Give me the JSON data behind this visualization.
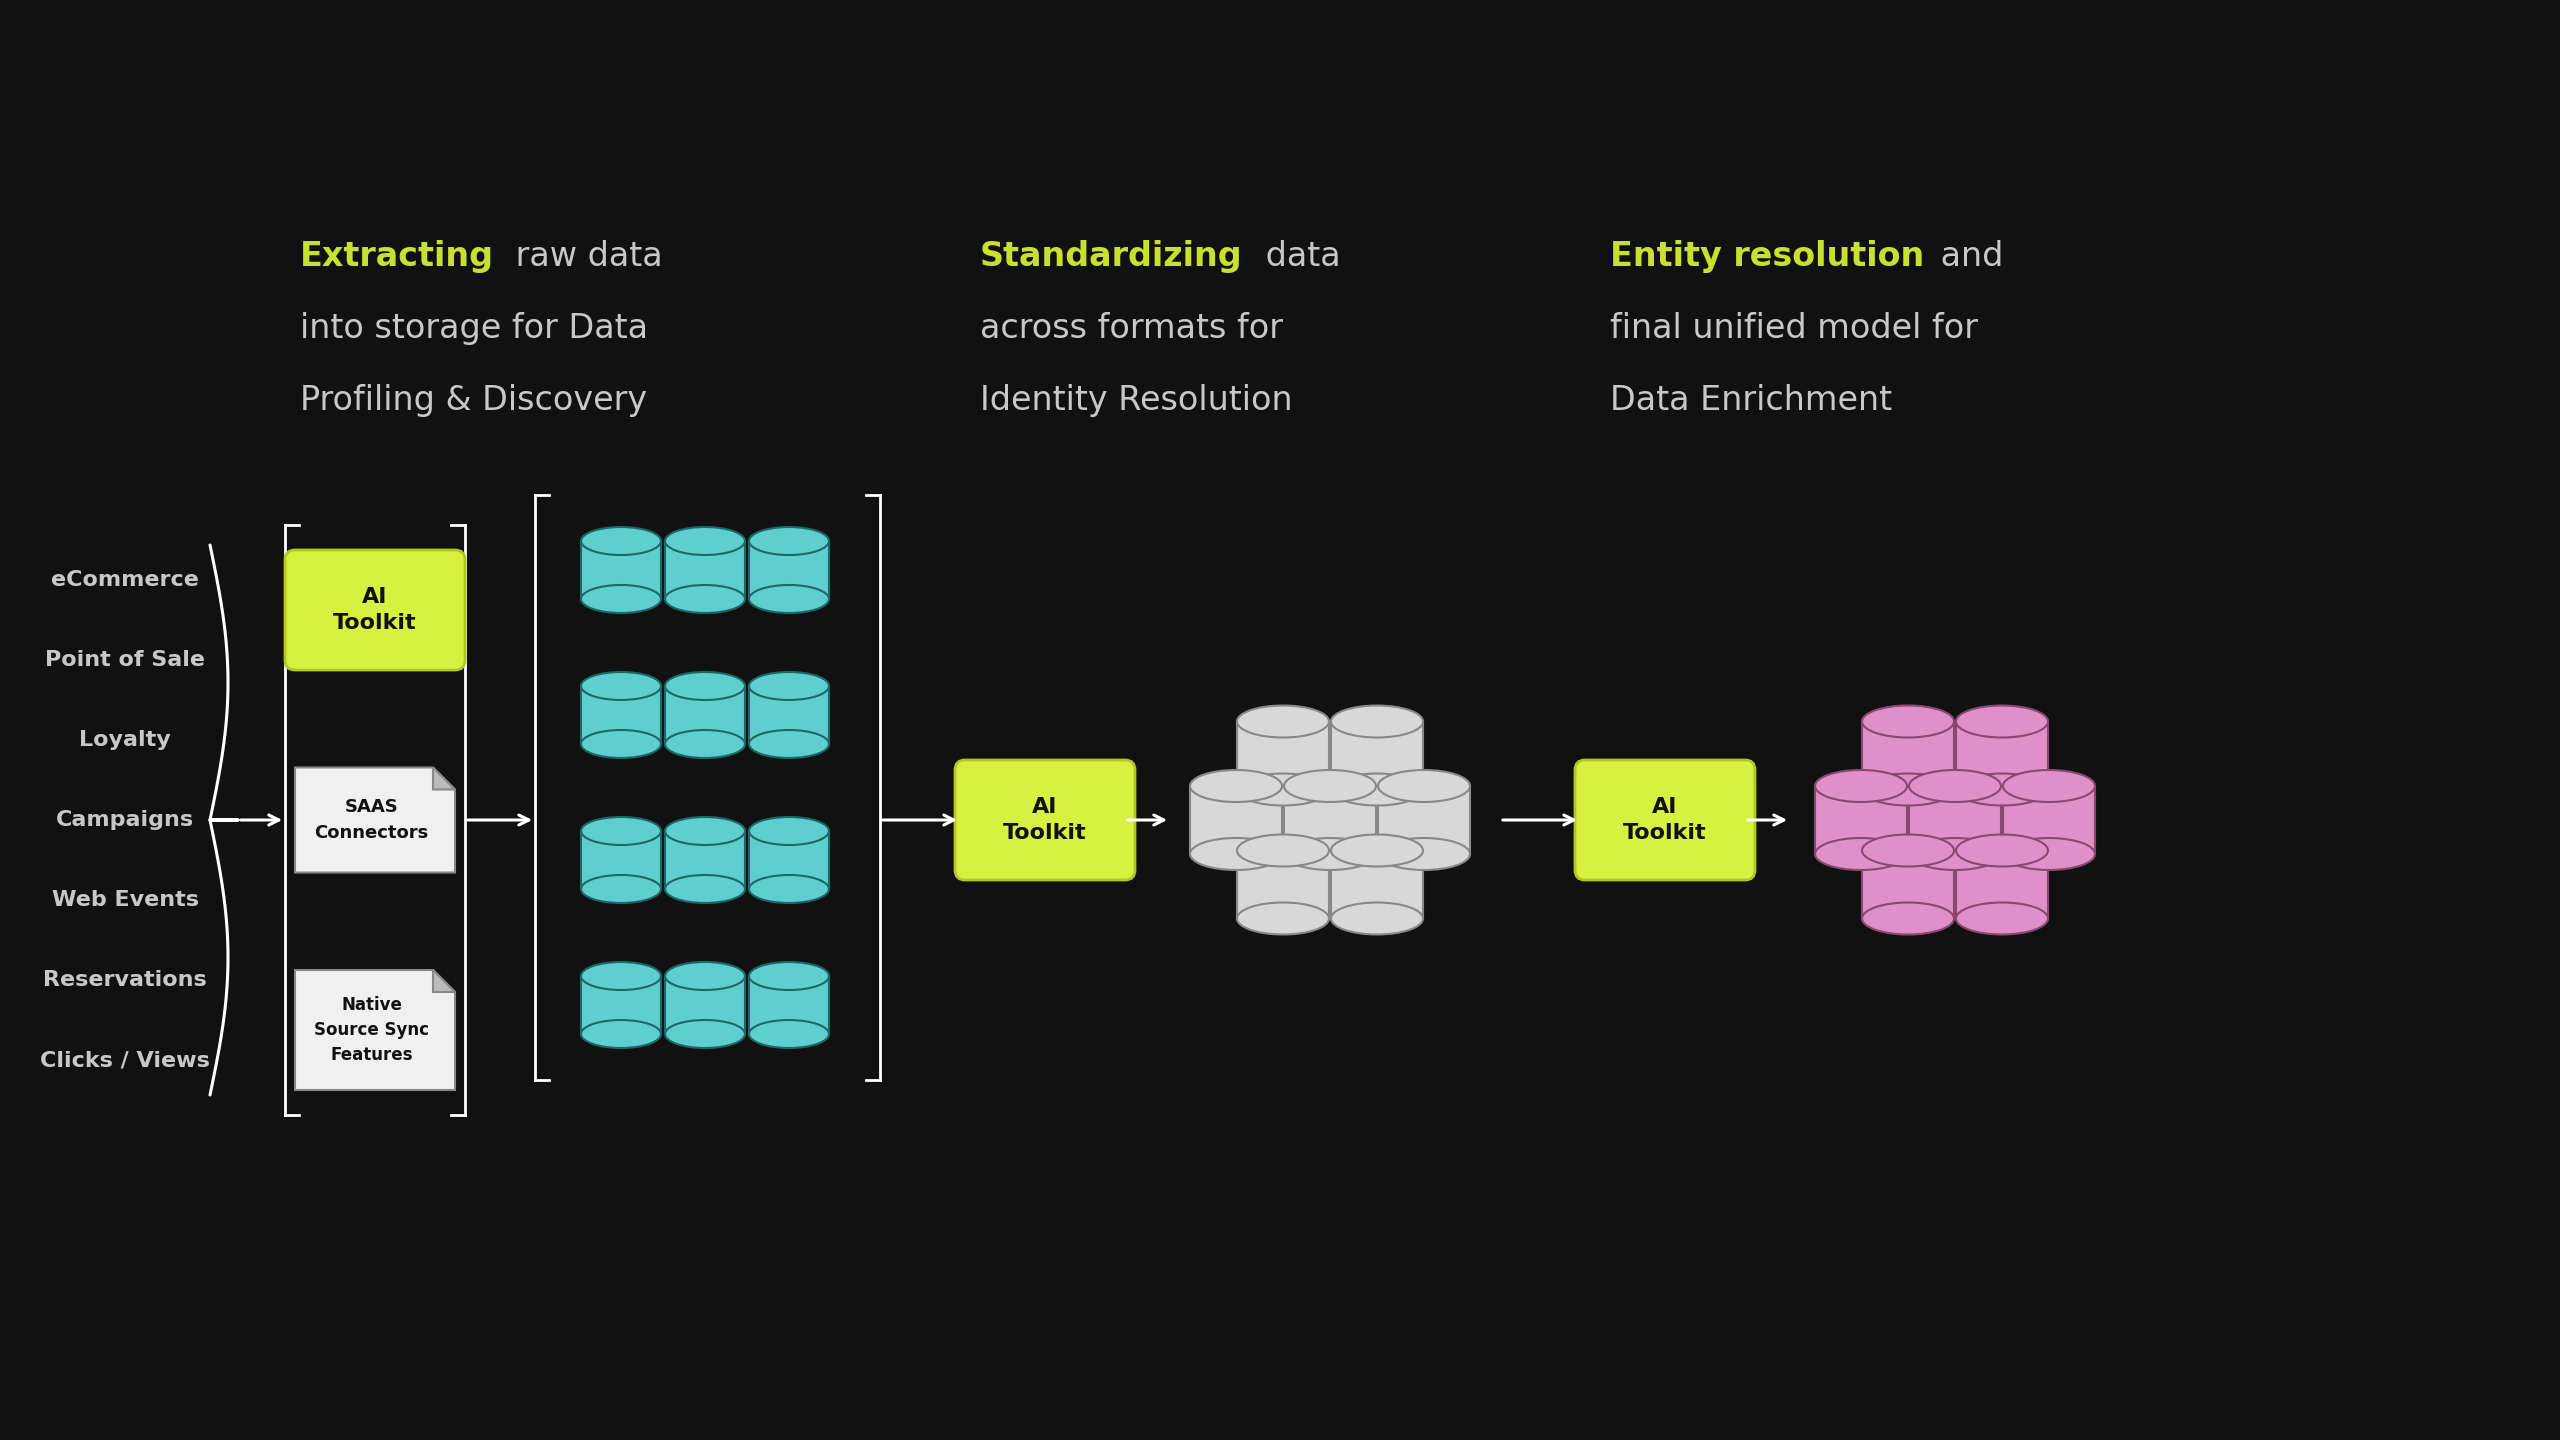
{
  "bg_color": "#111111",
  "text_color": "#c8c8c8",
  "highlight_color": "#c8e030",
  "yellow_box_color": "#d8f040",
  "yellow_box_edge": "#b0c820",
  "teal_color": "#5ecece",
  "teal_edge": "#1a6868",
  "pink_color": "#e090c8",
  "pink_edge": "#884870",
  "white_cyl": "#d8d8d8",
  "white_cyl_edge": "#888888",
  "source_labels": [
    "eCommerce",
    "Point of Sale",
    "Loyalty",
    "Campaigns",
    "Web Events",
    "Reservations",
    "Clicks / Views"
  ],
  "box1_lines": [
    "AI",
    "Toolkit"
  ],
  "box2_lines": [
    "SAAS",
    "Connectors"
  ],
  "box3_lines": [
    "Native",
    "Source Sync",
    "Features"
  ],
  "box4_lines": [
    "AI",
    "Toolkit"
  ],
  "box5_lines": [
    "AI",
    "Toolkit"
  ],
  "title1_bold": "Extracting",
  "title1_rest1": " raw data",
  "title1_rest2": "into storage for Data",
  "title1_rest3": "Profiling & Discovery",
  "title2_bold": "Standardizing",
  "title2_rest1": " data",
  "title2_rest2": "across formats for",
  "title2_rest3": "Identity Resolution",
  "title3_bold": "Entity resolution",
  "title3_rest1": " and",
  "title3_rest2": "final unified model for",
  "title3_rest3": "Data Enrichment"
}
